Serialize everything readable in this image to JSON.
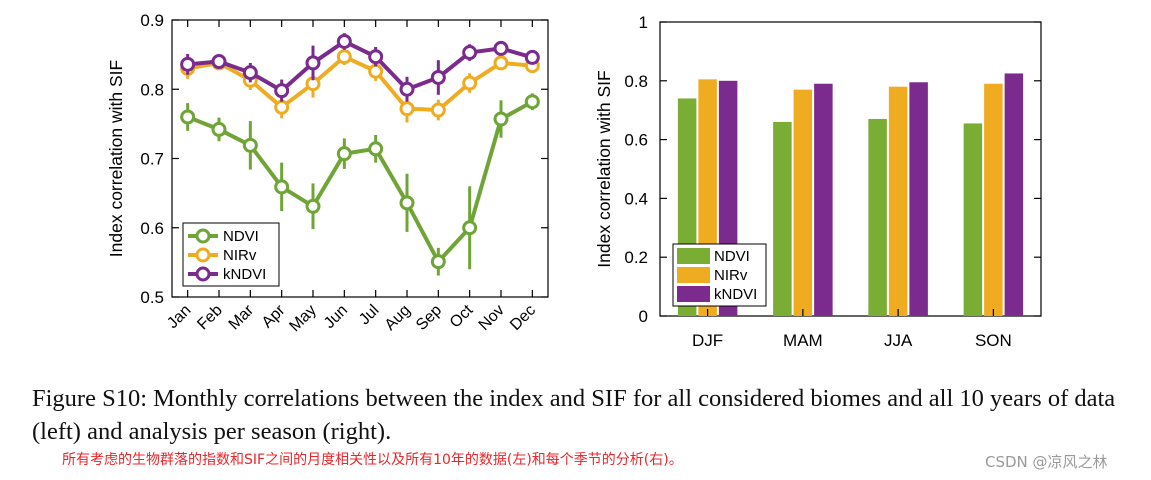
{
  "chart_data": [
    {
      "type": "line",
      "ylabel": "Index correlation with SIF",
      "xlabel": "",
      "categories": [
        "Jan",
        "Feb",
        "Mar",
        "Apr",
        "May",
        "Jun",
        "Jul",
        "Aug",
        "Sep",
        "Oct",
        "Nov",
        "Dec"
      ],
      "ylim": [
        0.5,
        0.9
      ],
      "yticks": [
        0.5,
        0.6,
        0.7,
        0.8,
        0.9
      ],
      "ytick_labels": [
        "0.5",
        "0.6",
        "0.7",
        "0.8",
        "0.9"
      ],
      "legend_position": "bottom-left",
      "series": [
        {
          "name": "NDVI",
          "color": "#6fa536",
          "values": [
            0.76,
            0.742,
            0.719,
            0.659,
            0.631,
            0.707,
            0.714,
            0.636,
            0.551,
            0.6,
            0.757,
            0.782
          ],
          "err": [
            0.02,
            0.017,
            0.035,
            0.035,
            0.033,
            0.022,
            0.02,
            0.042,
            0.02,
            0.06,
            0.027,
            0.012
          ]
        },
        {
          "name": "NIRv",
          "color": "#f0ac20",
          "values": [
            0.83,
            0.838,
            0.813,
            0.774,
            0.808,
            0.847,
            0.826,
            0.772,
            0.77,
            0.809,
            0.838,
            0.834
          ],
          "err": [
            0.015,
            0.01,
            0.014,
            0.016,
            0.02,
            0.012,
            0.014,
            0.02,
            0.015,
            0.014,
            0.01,
            0.008
          ]
        },
        {
          "name": "kNDVI",
          "color": "#7b2a8e",
          "values": [
            0.836,
            0.84,
            0.824,
            0.798,
            0.838,
            0.869,
            0.847,
            0.8,
            0.817,
            0.853,
            0.859,
            0.846
          ],
          "err": [
            0.015,
            0.01,
            0.014,
            0.016,
            0.025,
            0.012,
            0.014,
            0.018,
            0.025,
            0.012,
            0.008,
            0.008
          ]
        }
      ]
    },
    {
      "type": "bar",
      "ylabel": "Index correlation with SIF",
      "xlabel": "",
      "categories": [
        "DJF",
        "MAM",
        "JJA",
        "SON"
      ],
      "ylim": [
        0,
        1
      ],
      "yticks": [
        0,
        0.2,
        0.4,
        0.6,
        0.8,
        1
      ],
      "ytick_labels": [
        "0",
        "0.2",
        "0.4",
        "0.6",
        "0.8",
        "1"
      ],
      "legend_position": "bottom-left",
      "series": [
        {
          "name": "NDVI",
          "color": "#79ad34",
          "values": [
            0.74,
            0.66,
            0.67,
            0.655
          ]
        },
        {
          "name": "NIRv",
          "color": "#f0ac20",
          "values": [
            0.805,
            0.77,
            0.78,
            0.79
          ]
        },
        {
          "name": "kNDVI",
          "color": "#7b2a8e",
          "values": [
            0.8,
            0.79,
            0.795,
            0.825
          ]
        }
      ]
    }
  ],
  "caption": {
    "text": "Figure S10: Monthly correlations between the index and SIF for all considered biomes and all 10 years of data (left) and analysis per season (right).",
    "note": "所有考虑的生物群落的指数和SIF之间的月度相关性以及所有10年的数据(左)和每个季节的分析(右)。"
  },
  "watermark": "CSDN @凉风之林"
}
